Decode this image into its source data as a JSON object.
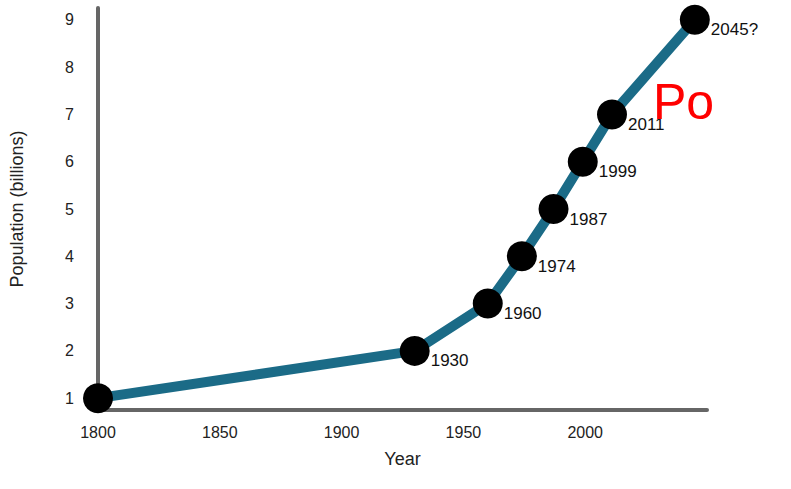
{
  "chart_data": {
    "type": "line",
    "title": "Po",
    "x": [
      1800,
      1930,
      1960,
      1974,
      1987,
      1999,
      2011,
      2045
    ],
    "values": [
      1,
      2,
      3,
      4,
      5,
      6,
      7,
      9
    ],
    "point_labels": [
      null,
      "1930",
      "1960",
      "1974",
      "1987",
      "1999",
      "2011",
      "2045?"
    ],
    "x_label": "Year",
    "y_label": "Population (billions)",
    "color": "#1b6b87",
    "marker": "circle",
    "xlim": [
      1800,
      2050
    ],
    "xticks": [
      1800,
      1850,
      1900,
      1950,
      2000
    ],
    "ylim": [
      0.75,
      9.25
    ],
    "yticks": [
      1,
      2,
      3,
      4,
      5,
      6,
      7,
      8,
      9
    ],
    "grid": false
  }
}
